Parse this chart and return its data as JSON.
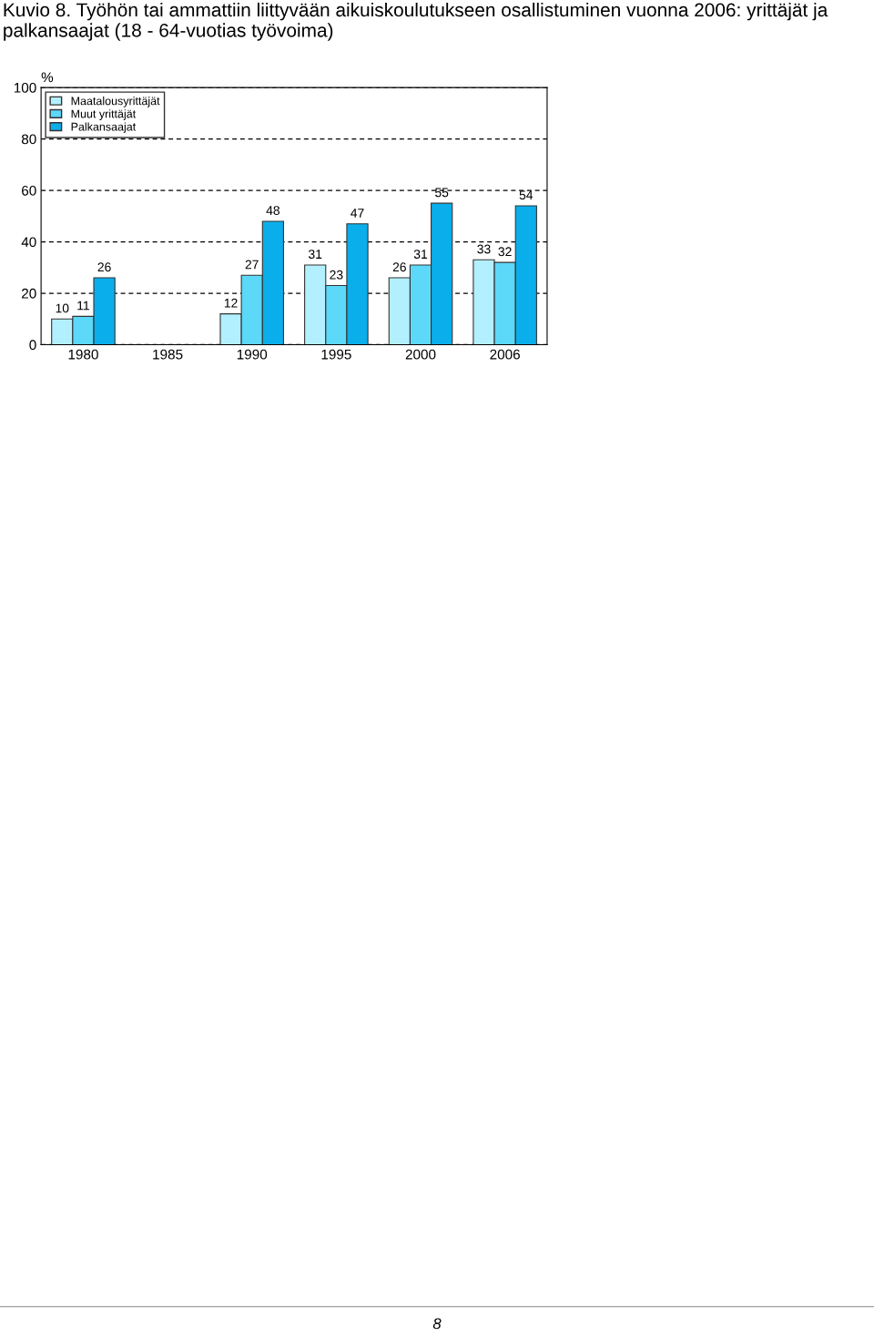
{
  "chart_data": {
    "type": "bar",
    "title": "Kuvio 8. Työhön tai ammattiin liittyvään aikuiskoulutukseen osallistuminen vuonna 2006: yrittäjät ja palkansaajat (18 - 64-vuotias työvoima)",
    "ylabel": "%",
    "categories": [
      "1980",
      "1985",
      "1990",
      "1995",
      "2000",
      "2006"
    ],
    "series": [
      {
        "name": "Maatalousyrittäjät",
        "color": "#b3f0ff",
        "values": [
          10,
          null,
          12,
          31,
          26,
          33
        ]
      },
      {
        "name": "Muut yrittäjät",
        "color": "#5cd8f8",
        "values": [
          11,
          null,
          27,
          23,
          31,
          32
        ]
      },
      {
        "name": "Palkansaajat",
        "color": "#0aaeea",
        "values": [
          26,
          null,
          48,
          47,
          55,
          54
        ]
      }
    ],
    "ylim": [
      0,
      100
    ],
    "yticks": [
      0,
      20,
      40,
      60,
      80,
      100
    ],
    "grid": "y",
    "legend": "top left",
    "data_labels": true,
    "annotations": [
      "8"
    ]
  }
}
